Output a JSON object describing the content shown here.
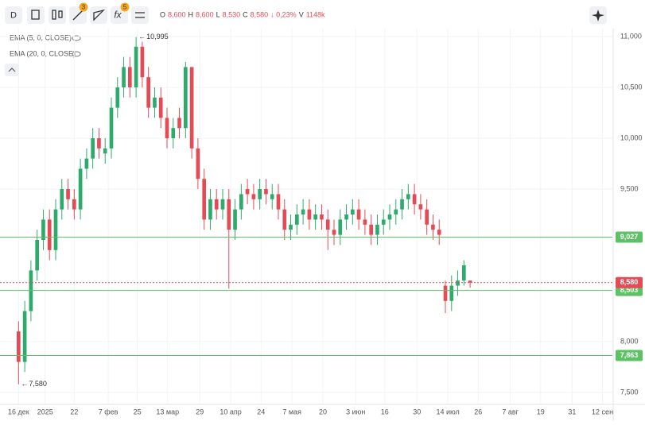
{
  "toolbar": {
    "interval": "D",
    "drawings_badge": "3",
    "indicators_badge": "5",
    "ohlc": [
      {
        "key": "O",
        "value": "8,600"
      },
      {
        "key": "H",
        "value": "8,600"
      },
      {
        "key": "L",
        "value": "8,530"
      },
      {
        "key": "C",
        "value": "8,580"
      }
    ],
    "change": "↓ 0,23%",
    "volume_key": "V",
    "volume": "1148k"
  },
  "indicators": [
    "EMA (5, 0, CLOSE)",
    "EMA (20, 0, CLOSE)"
  ],
  "chart_data": {
    "type": "candlestick",
    "up_color": "#2eaa6c",
    "down_color": "#e54b55",
    "grid": true,
    "open": [
      8100,
      7800,
      8300,
      8700,
      9000,
      9200,
      8900,
      9300,
      9500,
      9400,
      9300,
      9700,
      9800,
      10000,
      9850,
      9900,
      10300,
      10500,
      10700,
      10500,
      10900,
      10600,
      10300,
      10400,
      10200,
      10000,
      10200,
      10100,
      10700,
      9900,
      9600,
      9200,
      9400,
      9300,
      9400,
      9100,
      9300,
      9500,
      9450,
      9400,
      9500,
      9400,
      9450,
      9300,
      9100,
      9150,
      9250,
      9300,
      9200,
      9250,
      9200,
      9100,
      9050,
      9200,
      9250,
      9300,
      9200,
      9150,
      9050,
      9150,
      9200,
      9250,
      9300,
      9400,
      9450,
      9350,
      9300,
      9150,
      9100,
      8550,
      8400,
      8550,
      8600,
      8600
    ],
    "high": [
      8200,
      8400,
      8800,
      9100,
      9300,
      9300,
      9400,
      9600,
      9600,
      9500,
      9800,
      9900,
      10100,
      10100,
      10000,
      10400,
      10600,
      10800,
      10800,
      10995,
      10950,
      10700,
      10500,
      10500,
      10300,
      10200,
      10300,
      10750,
      10700,
      10000,
      9700,
      9500,
      9500,
      9500,
      9500,
      9400,
      9550,
      9600,
      9550,
      9600,
      9600,
      9550,
      9550,
      9400,
      9250,
      9350,
      9400,
      9400,
      9350,
      9350,
      9300,
      9200,
      9300,
      9350,
      9400,
      9400,
      9300,
      9250,
      9250,
      9300,
      9350,
      9400,
      9500,
      9550,
      9550,
      9450,
      9400,
      9250,
      9200,
      8600,
      8650,
      8700,
      8800,
      8600
    ],
    "low": [
      7580,
      7700,
      8200,
      8600,
      8900,
      8800,
      8800,
      9200,
      9300,
      9200,
      9200,
      9600,
      9700,
      9800,
      9750,
      9800,
      10200,
      10400,
      10400,
      10400,
      10500,
      10200,
      10200,
      10100,
      9900,
      9900,
      10000,
      10000,
      9800,
      9500,
      9100,
      9100,
      9200,
      9200,
      8520,
      9000,
      9200,
      9350,
      9300,
      9300,
      9350,
      9300,
      9200,
      9000,
      9000,
      9050,
      9150,
      9100,
      9100,
      9100,
      8900,
      8950,
      8950,
      9100,
      9150,
      9100,
      9050,
      8950,
      8950,
      9050,
      9100,
      9150,
      9200,
      9300,
      9250,
      9200,
      9050,
      9000,
      8950,
      8280,
      8300,
      8450,
      8550,
      8530
    ],
    "close": [
      7800,
      8300,
      8700,
      9000,
      9200,
      8900,
      9300,
      9500,
      9400,
      9300,
      9700,
      9800,
      10000,
      9900,
      9900,
      10300,
      10500,
      10700,
      10500,
      10900,
      10600,
      10300,
      10400,
      10200,
      10000,
      10100,
      10100,
      10700,
      9900,
      9600,
      9200,
      9400,
      9300,
      9400,
      9100,
      9300,
      9450,
      9450,
      9400,
      9500,
      9450,
      9450,
      9300,
      9100,
      9150,
      9250,
      9300,
      9200,
      9250,
      9200,
      9100,
      9050,
      9200,
      9250,
      9300,
      9200,
      9150,
      9050,
      9150,
      9200,
      9250,
      9300,
      9400,
      9450,
      9350,
      9300,
      9150,
      9100,
      9050,
      8400,
      8550,
      8600,
      8750,
      8580
    ],
    "ylim": [
      7400,
      11100
    ],
    "yticks": [
      {
        "value": 11000,
        "label": "11,000"
      },
      {
        "value": 10500,
        "label": "10,500"
      },
      {
        "value": 10000,
        "label": "10,000"
      },
      {
        "value": 9500,
        "label": "9,500"
      },
      {
        "value": 8000,
        "label": "8,000"
      },
      {
        "value": 7500,
        "label": "7,500"
      }
    ],
    "xlim": [
      -3,
      96
    ],
    "xticks": [
      {
        "value": 0,
        "label": "16 дек"
      },
      {
        "value": 4.3,
        "label": "2025"
      },
      {
        "value": 9,
        "label": "22"
      },
      {
        "value": 14.5,
        "label": "7 фев"
      },
      {
        "value": 19.2,
        "label": "25"
      },
      {
        "value": 24.1,
        "label": "13 мар"
      },
      {
        "value": 29.3,
        "label": "29"
      },
      {
        "value": 34.3,
        "label": "10 апр"
      },
      {
        "value": 39.2,
        "label": "24"
      },
      {
        "value": 44.2,
        "label": "7 мая"
      },
      {
        "value": 49.2,
        "label": "20"
      },
      {
        "value": 54.5,
        "label": "3 июн"
      },
      {
        "value": 59.2,
        "label": "16"
      },
      {
        "value": 64.4,
        "label": "30"
      },
      {
        "value": 69.4,
        "label": "14 июл"
      },
      {
        "value": 74.3,
        "label": "26"
      },
      {
        "value": 79.5,
        "label": "7 авг"
      },
      {
        "value": 84.4,
        "label": "19"
      },
      {
        "value": 89.5,
        "label": "31"
      },
      {
        "value": 94.4,
        "label": "12 сен"
      }
    ],
    "levels": [
      {
        "value": 9027,
        "label": "9,027",
        "color": "#5cc265"
      },
      {
        "value": 8503,
        "label": "8,503",
        "color": "#5cc265"
      },
      {
        "value": 7863,
        "label": "7,863",
        "color": "#5cc265"
      }
    ],
    "last_price": {
      "value": 8580,
      "label": "8,580",
      "color": "#e54b55"
    },
    "annotations": [
      {
        "value": 10995,
        "label": "10,995",
        "index": 19
      },
      {
        "value": 7580,
        "label": "7,580",
        "index": 0
      }
    ]
  }
}
